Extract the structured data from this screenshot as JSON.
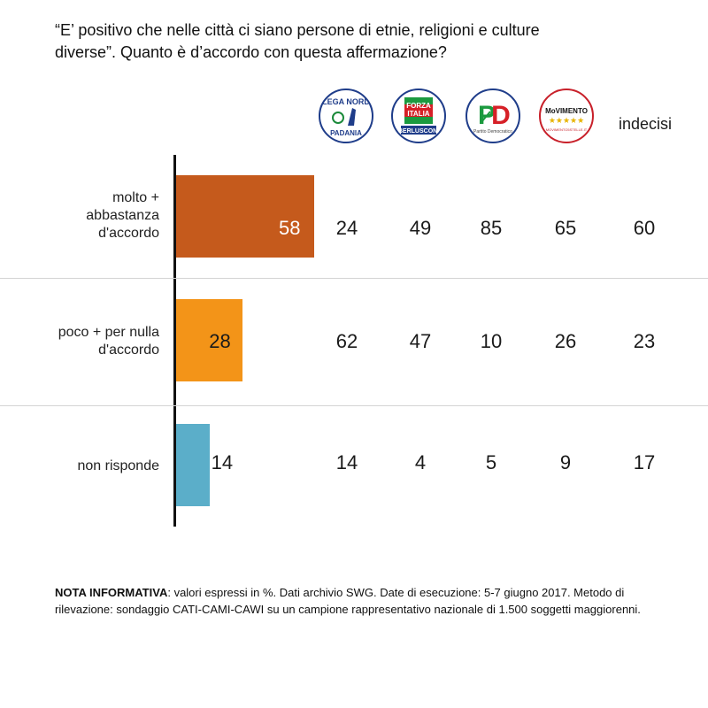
{
  "question": {
    "line1": "“E’ positivo che nelle città ci siano persone di etnie, religioni e culture",
    "line2": "diverse”. Quanto è d’accordo con questa affermazione?"
  },
  "columns": [
    {
      "id": "lega",
      "type": "logo",
      "name": "Lega Nord",
      "logo_text_top": "LEGA NORD",
      "logo_text_bottom": "PADANIA"
    },
    {
      "id": "fi",
      "type": "logo",
      "name": "Forza Italia",
      "logo_text_top": "FORZA ITALIA",
      "logo_text_bottom": "BERLUSCONI"
    },
    {
      "id": "pd",
      "type": "logo",
      "name": "Partito Democratico",
      "logo_text_top": "PD",
      "logo_text_bottom": "Partito Democratico"
    },
    {
      "id": "m5s",
      "type": "logo",
      "name": "MoVimento 5 Stelle",
      "logo_text_top": "MoVIMENTO",
      "logo_text_bottom": "★★★★★"
    },
    {
      "id": "indecisi",
      "type": "text",
      "label": "indecisi"
    }
  ],
  "rows": [
    {
      "label_lines": [
        "molto +",
        "abbastanza",
        "d'accordo"
      ],
      "total": 58,
      "color": "#c55a1c",
      "values": [
        24,
        49,
        85,
        65,
        60
      ]
    },
    {
      "label_lines": [
        "poco + per nulla",
        "d'accordo"
      ],
      "total": 28,
      "color": "#f39418",
      "values": [
        62,
        47,
        10,
        26,
        23
      ]
    },
    {
      "label_lines": [
        "non risponde"
      ],
      "total": 14,
      "color": "#5baec9",
      "values": [
        14,
        4,
        5,
        9,
        17
      ]
    }
  ],
  "chart_data": {
    "type": "bar",
    "orientation": "horizontal",
    "title": "“E’ positivo che nelle città ci siano persone di etnie, religioni e culture diverse”. Quanto è d’accordo con questa affermazione?",
    "categories": [
      "molto + abbastanza d'accordo",
      "poco + per nulla d'accordo",
      "non risponde"
    ],
    "values": [
      58,
      28,
      14
    ],
    "table": {
      "columns": [
        "Lega Nord",
        "Forza Italia",
        "Partito Democratico",
        "MoVimento 5 Stelle",
        "indecisi"
      ],
      "rows": [
        [
          24,
          49,
          85,
          65,
          60
        ],
        [
          62,
          47,
          10,
          26,
          23
        ],
        [
          14,
          4,
          5,
          9,
          17
        ]
      ]
    },
    "xlim": [
      0,
      100
    ],
    "grid": false,
    "legend": "none"
  },
  "note": {
    "bold": "NOTA INFORMATIVA",
    "text": ": valori espressi in %. Dati archivio SWG. Date di esecuzione: 5-7 giugno 2017. Metodo di rilevazione: sondaggio CATI-CAMI-CAWI su un campione rappresentativo nazionale di 1.500 soggetti maggiorenni."
  }
}
